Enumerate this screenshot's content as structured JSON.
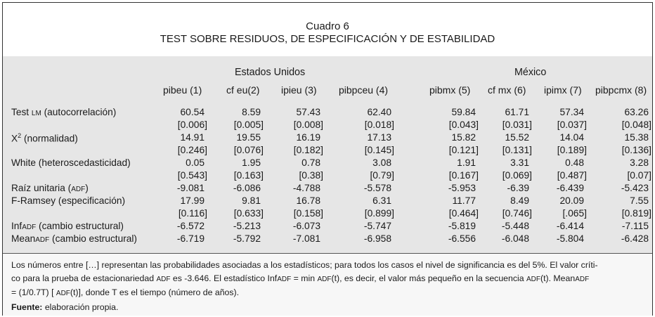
{
  "title": "Cuadro 6",
  "subtitle": "TEST SOBRE RESIDUOS, DE ESPECIFICACIÓN Y DE ESTABILIDAD",
  "groups": [
    "Estados Unidos",
    "México"
  ],
  "columns": [
    "pibeu (1)",
    "cf eu(2)",
    "ipieu (3)",
    "pibpceu (4)",
    "pibmx (5)",
    "cf mx (6)",
    "ipimx (7)",
    "pibpcmx (8)"
  ],
  "rows": [
    {
      "label_a": "Test ",
      "label_sc": "LM",
      "label_b": " (autocorrelación)",
      "values": [
        "60.54",
        "8.59",
        "57.43",
        "62.40",
        "59.84",
        "61.71",
        "57.34",
        "63.26"
      ],
      "probs": [
        "[0.006]",
        "[0.005]",
        "[0.008]",
        "[0.018]",
        "[0.043]",
        "[0.031]",
        "[0.037]",
        "[0.048]"
      ]
    },
    {
      "label_a": "X",
      "label_sup": "2",
      "label_b": " (normalidad)",
      "values": [
        "14.91",
        "19.55",
        "16.19",
        "17.13",
        "15.82",
        "15.52",
        "14.04",
        "15.38"
      ],
      "probs": [
        "[0.246]",
        "[0.076]",
        "[0.182]",
        "[0.145]",
        "[0.121]",
        "[0.131]",
        "[0.189]",
        "[0.136]"
      ]
    },
    {
      "label_a": "White (heteroscedasticidad)",
      "values": [
        "0.05",
        "1.95",
        "0.78",
        "3.08",
        "1.91",
        "3.31",
        "0.48",
        "3.28"
      ],
      "probs": [
        "[0.543]",
        "[0.163]",
        "[0.38]",
        "[0.79]",
        "[0.167]",
        "[0.069]",
        "[0.487]",
        "[0.07]"
      ]
    },
    {
      "label_a": "Raíz unitaria (",
      "label_sc": "ADF",
      "label_b": ")",
      "values": [
        "-9.081",
        "-6.086",
        "-4.788",
        "-5.578",
        "-5.953",
        "-6.39",
        "-6.439",
        "-5.423"
      ]
    },
    {
      "label_a": "F-Ramsey (especificación)",
      "values": [
        "17.99",
        "9.81",
        "16.78",
        "6.31",
        "11.77",
        "8.49",
        "20.09",
        "7.55"
      ],
      "probs": [
        "[0.116]",
        "[0.633]",
        "[0.158]",
        "[0.899]",
        "[0.464]",
        "[0.746]",
        "[.065]",
        "[0.819]"
      ]
    },
    {
      "label_a": "Inf",
      "label_sc": "ADF",
      "label_b": " (cambio estructural)",
      "values": [
        "-6.572",
        "-5.213",
        "-6.073",
        "-5.747",
        "-5.819",
        "-5.448",
        "-6.414",
        "-7.115"
      ]
    },
    {
      "label_a": "Mean",
      "label_sc": "ADF",
      "label_b": " (cambio estructural)",
      "values": [
        "-6.719",
        "-5.792",
        "-7.081",
        "-6.958",
        "-6.556",
        "-6.048",
        "-5.804",
        "-6.428"
      ]
    }
  ],
  "notes": {
    "line1": "Los números entre […] representan las probabilidades asociadas a los estadísticos; para todos los casos el nivel de significancia es del 5%. El valor críti-",
    "line2a": "co para la prueba de estacionariedad ",
    "line2_adf1": "ADF",
    "line2b": " es -3.646. El estadístico Inf",
    "line2_adf2": "ADF",
    "line2c": " = min ",
    "line2_adf3": "ADF",
    "line2d": "(t), es decir, el valor más pequeño en la secuencia ",
    "line2_adf4": "ADF",
    "line2e": "(t). Mean",
    "line2_adf5": "ADF",
    "line3a": "= (1/0.7T) [   ",
    "line3_adf": "ADF",
    "line3b": "(t)], donde T es el tiempo (número de años).",
    "source_label": "Fuente:",
    "source_text": " elaboración propia."
  }
}
